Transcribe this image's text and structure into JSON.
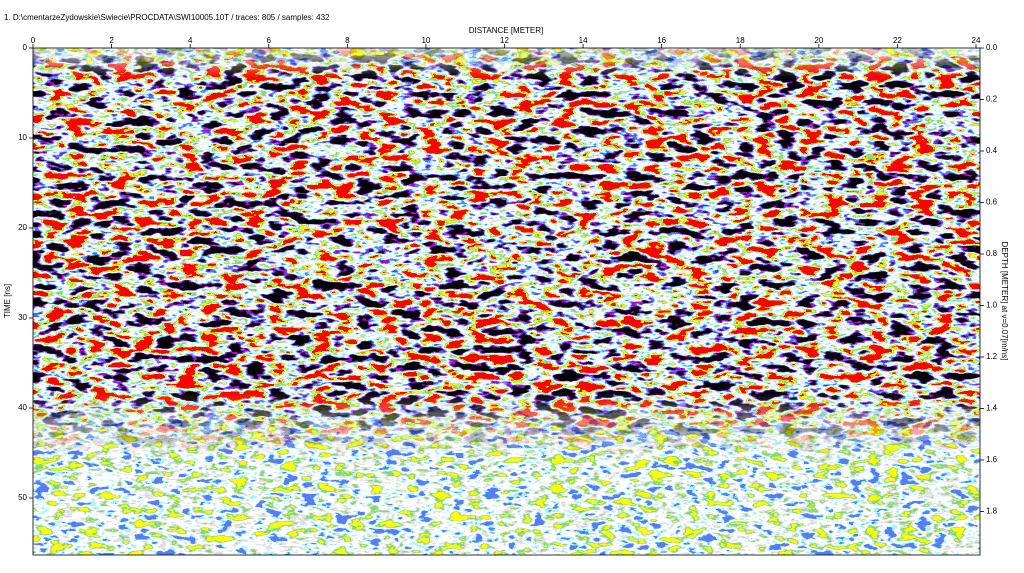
{
  "header": {
    "title": "1. D:\\cmentarzeZydowskie\\Swiecie\\PROCDATA\\SWI10005.10T / traces: 805 / samples: 432"
  },
  "top_axis": {
    "label": "DISTANCE [METER]",
    "ticks": [
      0,
      2,
      4,
      6,
      8,
      10,
      12,
      14,
      16,
      18,
      20,
      22,
      24
    ]
  },
  "left_axis": {
    "label": "TIME [ns]",
    "ticks": [
      0,
      10,
      20,
      30,
      40,
      50
    ]
  },
  "right_axis": {
    "label": "DEPTH [METER] at v=0.07[m/ns]",
    "ticks": [
      "0.0",
      "0.2",
      "0.4",
      "0.6",
      "0.8",
      "1.0",
      "1.2",
      "1.4",
      "1.6",
      "1.8"
    ]
  }
}
